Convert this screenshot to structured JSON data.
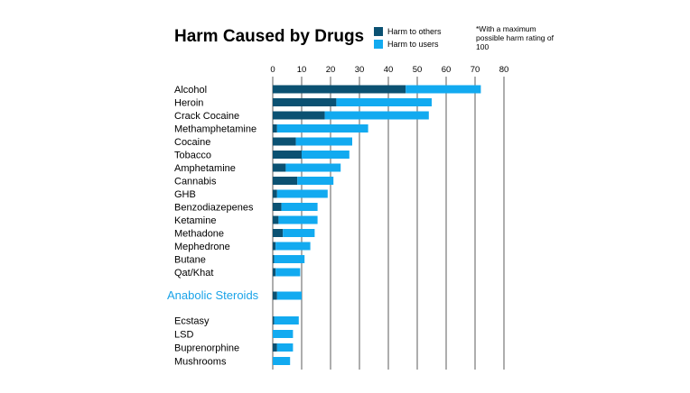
{
  "colors": {
    "harm_to_others": "#0b5172",
    "harm_to_users": "#12aaf0",
    "highlight_label": "#1aa3e8",
    "gridline": "#333333"
  },
  "chart_data": {
    "type": "bar",
    "orientation": "horizontal",
    "stacked": true,
    "title": "Harm Caused by Drugs",
    "note": "*With a maximum possible harm rating of 100",
    "legend_position": "top-right",
    "grid": true,
    "xlim": [
      0,
      80
    ],
    "x_ticks": [
      "0",
      "10",
      "20",
      "30",
      "40",
      "50",
      "60",
      "70",
      "80"
    ],
    "categories": [
      "Alcohol",
      "Heroin",
      "Crack Cocaine",
      "Methamphetamine",
      "Cocaine",
      "Tobacco",
      "Amphetamine",
      "Cannabis",
      "GHB",
      "Benzodiazepenes",
      "Ketamine",
      "Methadone",
      "Mephedrone",
      "Butane",
      "Qat/Khat",
      "Anabolic Steroids",
      "Ecstasy",
      "LSD",
      "Buprenorphine",
      "Mushrooms"
    ],
    "highlighted_category": "Anabolic Steroids",
    "series": [
      {
        "name": "Harm to others",
        "values": [
          46,
          22,
          18,
          1.5,
          8,
          10,
          4.5,
          8.5,
          1.5,
          3,
          2,
          3.5,
          1,
          0.5,
          1,
          1.5,
          0.5,
          0,
          1.5,
          0
        ]
      },
      {
        "name": "Harm to users",
        "values": [
          26,
          33,
          36,
          31.5,
          19.5,
          16.5,
          19,
          12.5,
          17.5,
          12.5,
          13.5,
          11,
          12,
          10.5,
          8.5,
          8.5,
          8.5,
          7,
          5.5,
          6
        ]
      }
    ]
  }
}
